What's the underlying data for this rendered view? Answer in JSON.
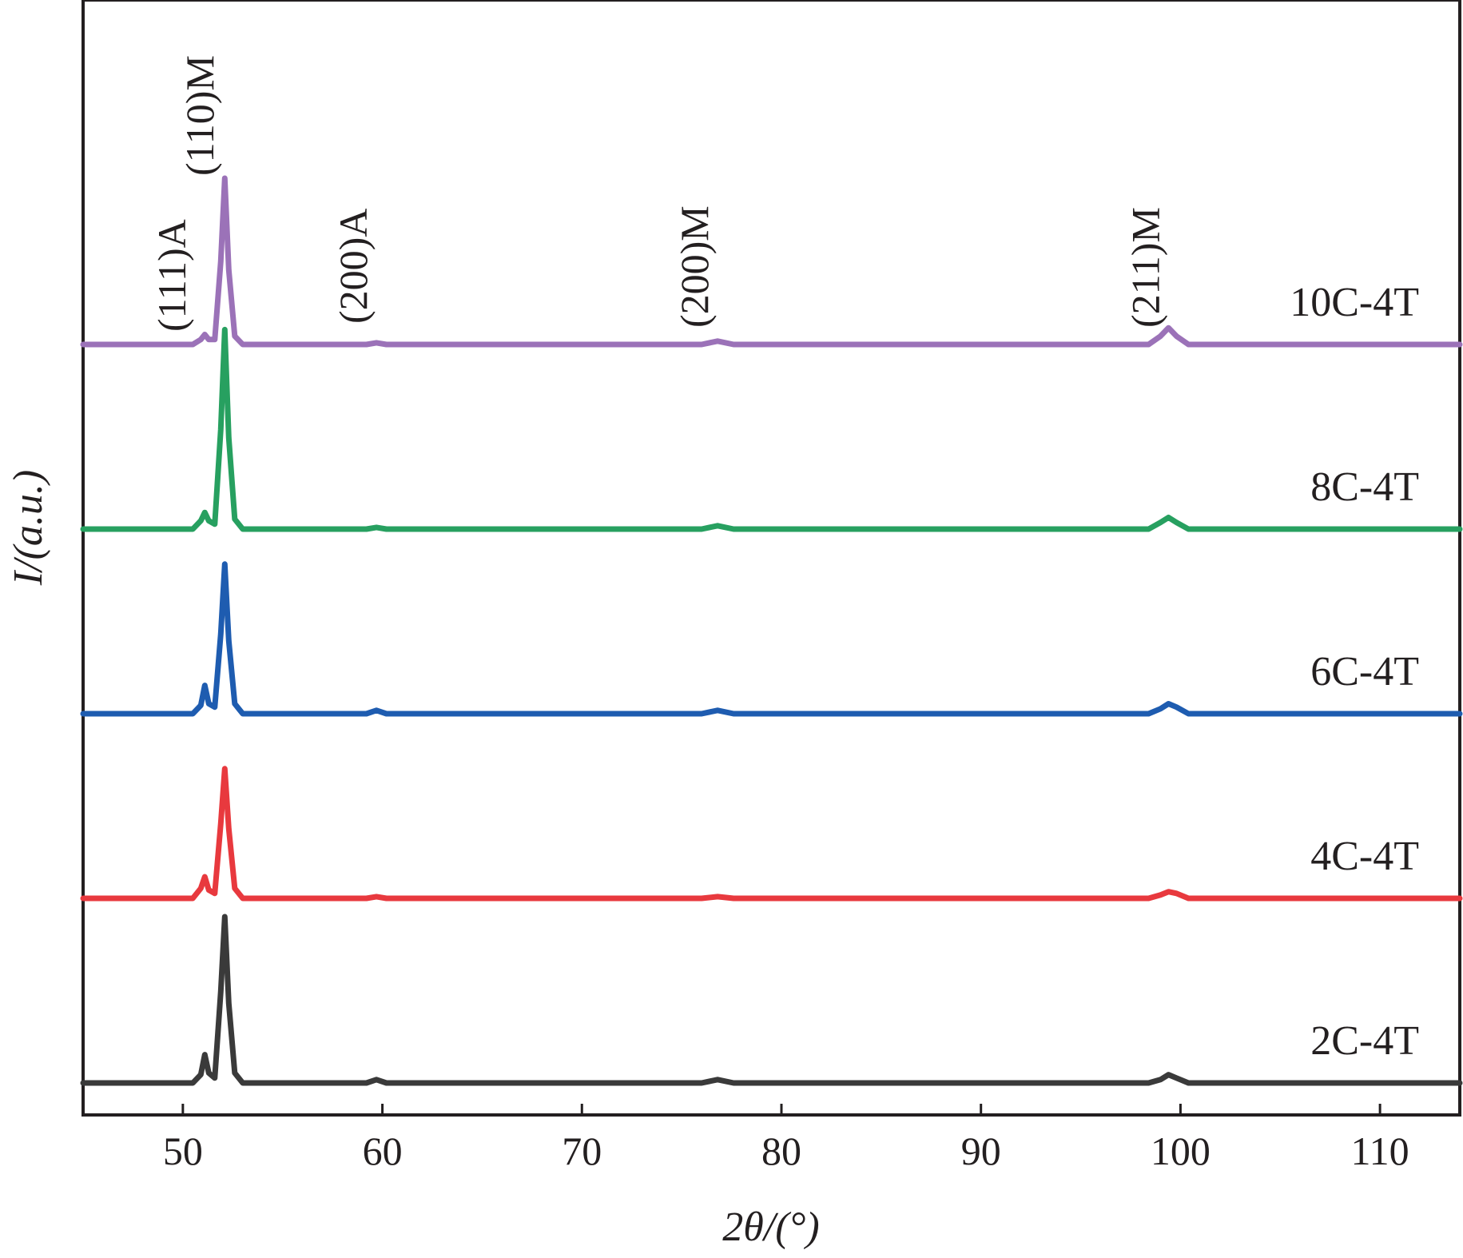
{
  "chart_data": {
    "type": "line",
    "xlabel": "2θ/(°)",
    "ylabel": "I/(a.u.)",
    "xlim": [
      45,
      114
    ],
    "xticks": [
      50,
      60,
      70,
      80,
      90,
      100,
      110
    ],
    "yticks": [],
    "grid": false,
    "legend": "inline labels at right end of each trace",
    "baseline": {
      "x": [
        45,
        50.5,
        50.9,
        51.1,
        51.3,
        51.6,
        51.9,
        52.1,
        52.3,
        52.6,
        53,
        59.2,
        59.7,
        60.2,
        76,
        76.8,
        77.6,
        98.4,
        99,
        99.4,
        99.8,
        100.4,
        114
      ]
    },
    "series": [
      {
        "name": "2C-4T",
        "color": "#3a3a3a",
        "offset": 0.0,
        "y": [
          0,
          0,
          0.05,
          0.17,
          0.06,
          0.03,
          0.55,
          1.0,
          0.48,
          0.06,
          0,
          0,
          0.02,
          0,
          0,
          0.02,
          0,
          0,
          0.02,
          0.05,
          0.03,
          0,
          0
        ]
      },
      {
        "name": "4C-4T",
        "color": "#e8393e",
        "offset": 1.0,
        "y": [
          0,
          0,
          0.06,
          0.13,
          0.05,
          0.03,
          0.45,
          0.78,
          0.42,
          0.06,
          0,
          0,
          0.01,
          0,
          0,
          0.01,
          0,
          0,
          0.02,
          0.04,
          0.03,
          0,
          0
        ]
      },
      {
        "name": "6C-4T",
        "color": "#1e5cb0",
        "offset": 2.0,
        "y": [
          0,
          0,
          0.05,
          0.17,
          0.06,
          0.04,
          0.48,
          0.9,
          0.44,
          0.06,
          0,
          0,
          0.02,
          0,
          0,
          0.02,
          0,
          0,
          0.03,
          0.06,
          0.04,
          0,
          0
        ]
      },
      {
        "name": "8C-4T",
        "color": "#27a060",
        "offset": 3.0,
        "y": [
          0,
          0,
          0.05,
          0.1,
          0.05,
          0.03,
          0.6,
          1.2,
          0.55,
          0.06,
          0,
          0,
          0.01,
          0,
          0,
          0.02,
          0,
          0,
          0.04,
          0.07,
          0.04,
          0,
          0
        ]
      },
      {
        "name": "10C-4T",
        "color": "#9b72b8",
        "offset": 4.0,
        "y": [
          0,
          0,
          0.03,
          0.06,
          0.03,
          0.03,
          0.5,
          1.0,
          0.45,
          0.05,
          0,
          0,
          0.01,
          0,
          0,
          0.02,
          0,
          0,
          0.05,
          0.1,
          0.05,
          0,
          0
        ]
      }
    ],
    "annotations": [
      {
        "text": "(111)A",
        "x": 51.0
      },
      {
        "text": "(110)M",
        "x": 52.0
      },
      {
        "text": "(200)A",
        "x": 59.7
      },
      {
        "text": "(200)M",
        "x": 76.8
      },
      {
        "text": "(211)M",
        "x": 99.4
      }
    ]
  }
}
